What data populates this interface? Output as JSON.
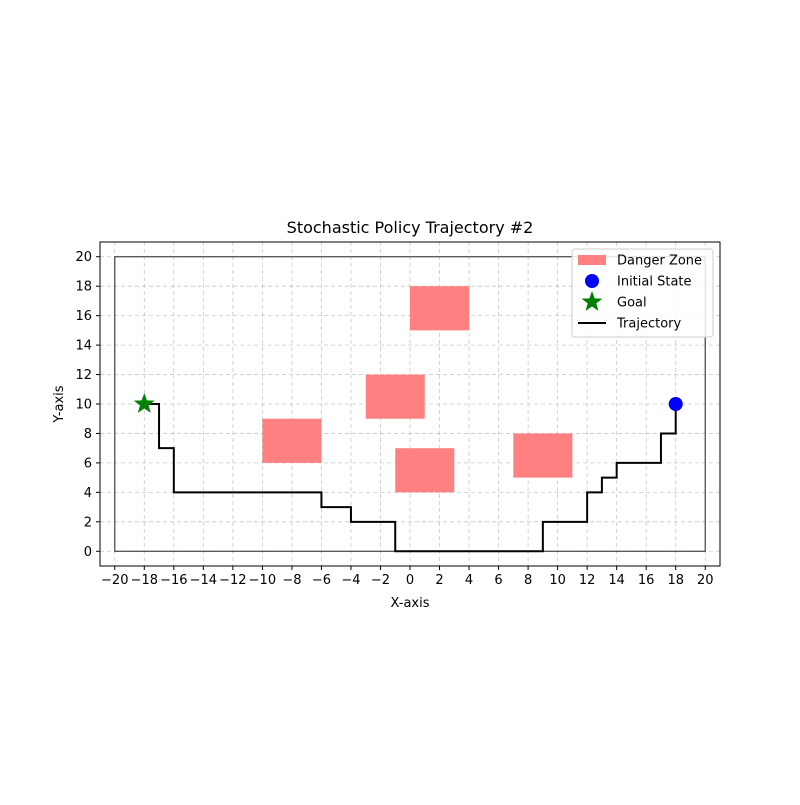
{
  "chart_data": {
    "type": "scatter",
    "title": "Stochastic Policy Trajectory #2",
    "xlabel": "X-axis",
    "ylabel": "Y-axis",
    "xlim": [
      -21,
      21
    ],
    "ylim": [
      -1,
      21
    ],
    "x_ticks": [
      -20,
      -18,
      -16,
      -14,
      -12,
      -10,
      -8,
      -6,
      -4,
      -2,
      0,
      2,
      4,
      6,
      8,
      10,
      12,
      14,
      16,
      18,
      20
    ],
    "y_ticks": [
      0,
      2,
      4,
      6,
      8,
      10,
      12,
      14,
      16,
      18,
      20
    ],
    "x_tick_labels": [
      "−20",
      "−18",
      "−16",
      "−14",
      "−12",
      "−10",
      "−8",
      "−6",
      "−4",
      "−2",
      "0",
      "2",
      "4",
      "6",
      "8",
      "10",
      "12",
      "14",
      "16",
      "18",
      "20"
    ],
    "y_tick_labels": [
      "0",
      "2",
      "4",
      "6",
      "8",
      "10",
      "12",
      "14",
      "16",
      "18",
      "20"
    ],
    "grid": true,
    "legend_position": "top-right",
    "boundary": {
      "x": [
        -20,
        20
      ],
      "y": [
        0,
        20
      ],
      "color": "#444444"
    },
    "danger_zones": {
      "name": "Danger Zone",
      "color": "#ff8080",
      "rects": [
        {
          "x0": 0,
          "x1": 4,
          "y0": 15,
          "y1": 18
        },
        {
          "x0": -3,
          "x1": 1,
          "y0": 9,
          "y1": 12
        },
        {
          "x0": -10,
          "x1": -6,
          "y0": 6,
          "y1": 9
        },
        {
          "x0": -1,
          "x1": 3,
          "y0": 4,
          "y1": 7
        },
        {
          "x0": 7,
          "x1": 11,
          "y0": 5,
          "y1": 8
        }
      ]
    },
    "initial_state": {
      "name": "Initial State",
      "x": 18,
      "y": 10,
      "color": "#0000ff"
    },
    "goal": {
      "name": "Goal",
      "x": -18,
      "y": 10,
      "color": "#008000"
    },
    "trajectory": {
      "name": "Trajectory",
      "color": "#000000",
      "points": [
        [
          18,
          10
        ],
        [
          18,
          8
        ],
        [
          17,
          8
        ],
        [
          17,
          6
        ],
        [
          14,
          6
        ],
        [
          14,
          5
        ],
        [
          13,
          5
        ],
        [
          13,
          4
        ],
        [
          12,
          4
        ],
        [
          12,
          2
        ],
        [
          9,
          2
        ],
        [
          9,
          0
        ],
        [
          -1,
          0
        ],
        [
          -1,
          2
        ],
        [
          -4,
          2
        ],
        [
          -4,
          3
        ],
        [
          -6,
          3
        ],
        [
          -6,
          4
        ],
        [
          -16,
          4
        ],
        [
          -16,
          7
        ],
        [
          -17,
          7
        ],
        [
          -17,
          10
        ],
        [
          -18,
          10
        ]
      ]
    }
  }
}
